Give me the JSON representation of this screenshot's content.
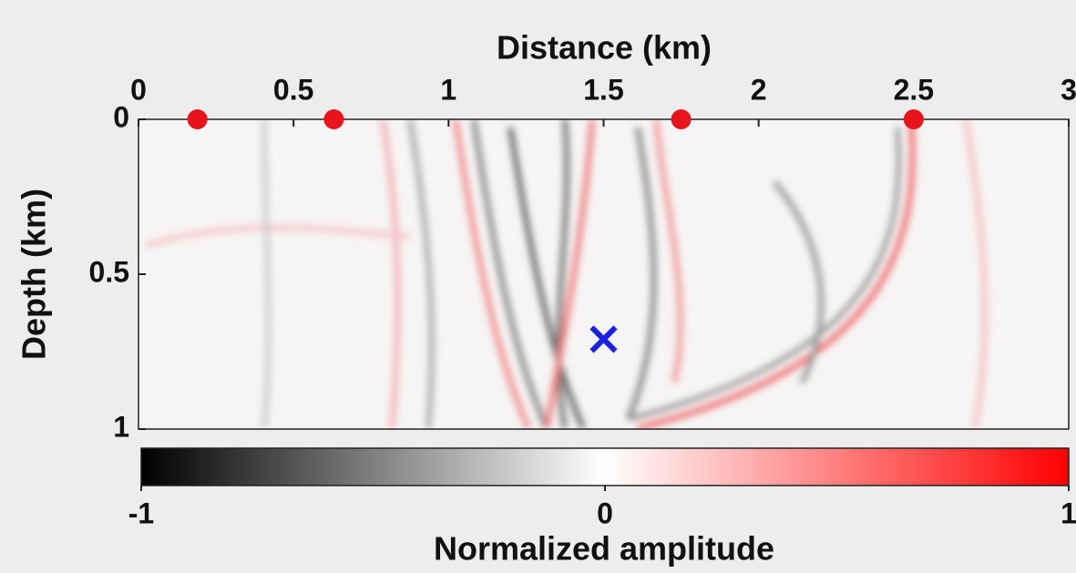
{
  "chart_data": {
    "type": "scatter",
    "x_label": "Distance (km)",
    "y_label": "Depth (km)",
    "xlim": [
      0,
      3
    ],
    "xticks": [
      0,
      0.5,
      1,
      1.5,
      2,
      2.5,
      3
    ],
    "x_axis_position": "top",
    "ylim": [
      0,
      1
    ],
    "yticks": [
      0,
      0.5,
      1
    ],
    "y_reversed": true,
    "series": [
      {
        "color": "#e8141b",
        "marker": "circle",
        "x": [
          0.19,
          0.63,
          1.75,
          2.5
        ],
        "values": [
          0,
          0,
          0,
          0
        ]
      },
      {
        "color": "#1a22e0",
        "marker": "x",
        "x": [
          1.5
        ],
        "values": [
          0.71
        ]
      }
    ],
    "colorbar": {
      "label": "Normalized amplitude",
      "lim": [
        -1,
        1
      ],
      "ticks": [
        -1,
        0,
        1
      ],
      "colors": [
        "#000000",
        "#ffffff",
        "#ff0000"
      ]
    }
  }
}
